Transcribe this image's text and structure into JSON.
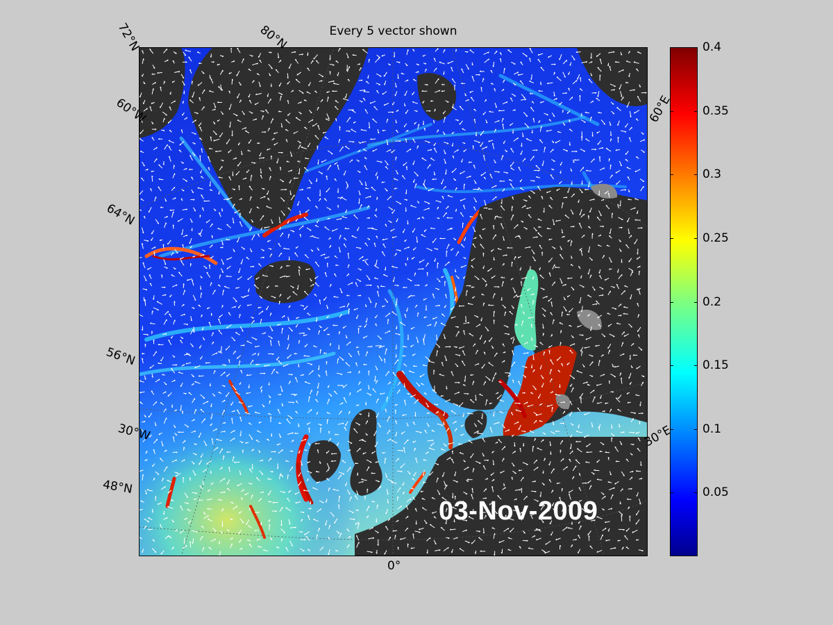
{
  "figure": {
    "title": "Every 5 vector shown",
    "date_stamp": "03-Nov-2009"
  },
  "map": {
    "lat_labels": [
      "72°N",
      "60°W",
      "64°N",
      "56°N",
      "30°W",
      "48°N"
    ],
    "lon_labels": [
      "80°N",
      "60°E",
      "30°E",
      "0°"
    ],
    "land_color": "#2e2e2e",
    "ice_color": "#8a8a8a",
    "vector_color": "#ffffff"
  },
  "colorbar": {
    "colormap": "jet",
    "min": 0,
    "max": 0.4,
    "ticks": [
      "0.4",
      "0.35",
      "0.3",
      "0.25",
      "0.2",
      "0.15",
      "0.1",
      "0.05"
    ],
    "tick_values": [
      0.4,
      0.35,
      0.3,
      0.25,
      0.2,
      0.15,
      0.1,
      0.05
    ]
  }
}
